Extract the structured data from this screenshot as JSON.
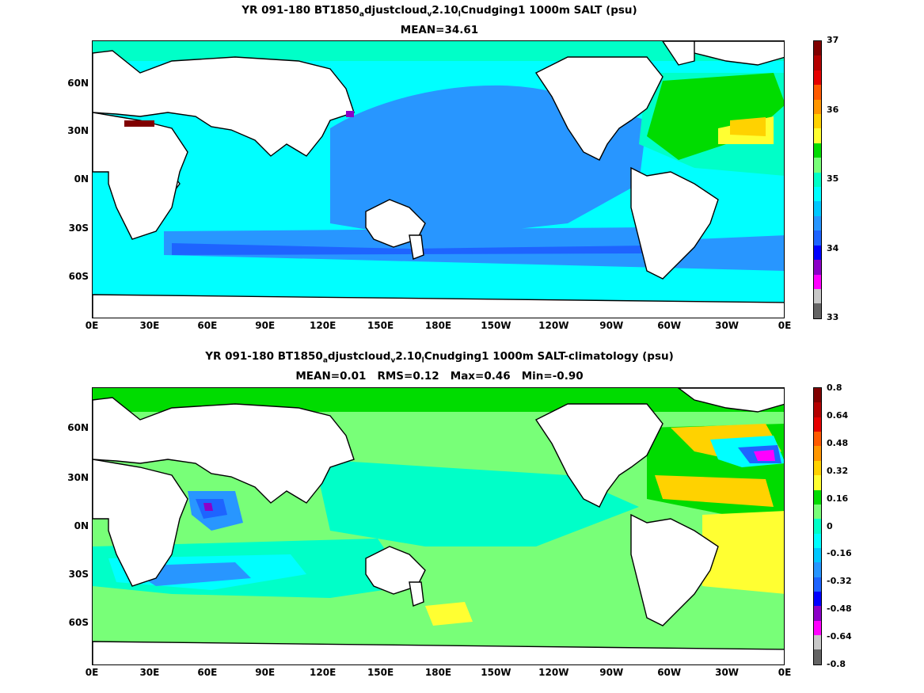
{
  "panels": [
    {
      "title_parts": [
        "YR 091-180 BT1850",
        "a",
        "djustcloud",
        "v",
        "2.10",
        "l",
        "Cnudging1 1000m SALT (psu)"
      ],
      "subtitle": "MEAN=34.61",
      "colorbar": {
        "labels": [
          "37",
          "36",
          "35",
          "34",
          "33"
        ],
        "colors": [
          "#800000",
          "#b40000",
          "#e60000",
          "#ff5a00",
          "#ff9600",
          "#ffd200",
          "#ffff32",
          "#00dc00",
          "#78ff78",
          "#00ffc8",
          "#00ffff",
          "#00c8ff",
          "#2896ff",
          "#1e64ff",
          "#0000ff",
          "#8c00c8",
          "#ff00ff",
          "#c8c8c8",
          "#646464"
        ]
      }
    },
    {
      "title_parts": [
        "YR 091-180 BT1850",
        "a",
        "djustcloud",
        "v",
        "2.10",
        "l",
        "Cnudging1 1000m SALT-climatology (psu)"
      ],
      "subtitle": "MEAN=0.01   RMS=0.12   Max=0.46   Min=-0.90",
      "colorbar": {
        "labels": [
          "0.8",
          "0.64",
          "0.48",
          "0.32",
          "0.16",
          "0",
          "-0.16",
          "-0.32",
          "-0.48",
          "-0.64",
          "-0.8"
        ],
        "colors": [
          "#800000",
          "#b40000",
          "#e60000",
          "#ff5a00",
          "#ff9600",
          "#ffd200",
          "#ffff32",
          "#00dc00",
          "#78ff78",
          "#00ffc8",
          "#00ffff",
          "#00c8ff",
          "#2896ff",
          "#1e64ff",
          "#0000ff",
          "#8c00c8",
          "#ff00ff",
          "#c8c8c8",
          "#646464"
        ]
      }
    }
  ],
  "axes": {
    "lat_labels": [
      "60N",
      "30N",
      "0N",
      "30S",
      "60S"
    ],
    "lon_labels": [
      "0E",
      "30E",
      "60E",
      "90E",
      "120E",
      "150E",
      "180E",
      "150W",
      "120W",
      "90W",
      "60W",
      "30W",
      "0E"
    ]
  }
}
